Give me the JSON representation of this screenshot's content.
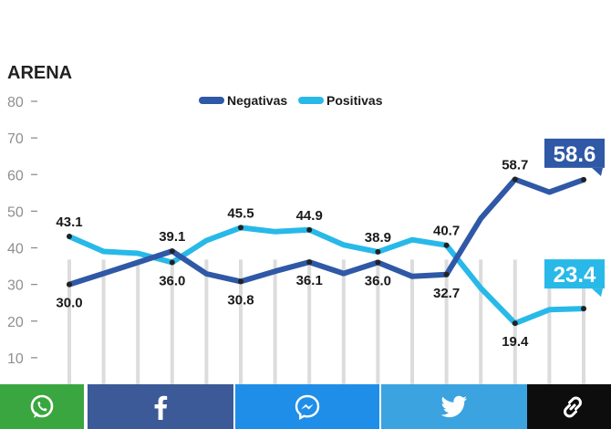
{
  "chart_data": {
    "type": "line",
    "title": "ARENA",
    "x": [
      1,
      2,
      3,
      4,
      5,
      6,
      7,
      8,
      9,
      10,
      11,
      12,
      13,
      14,
      15,
      16
    ],
    "xlabels": [
      "",
      "",
      "",
      "",
      "",
      "",
      "",
      "",
      "",
      "",
      "",
      "",
      "",
      "",
      "",
      ""
    ],
    "ylim": [
      0,
      80
    ],
    "yticks": [
      "80",
      "70",
      "60",
      "50",
      "40",
      "30",
      "20",
      "10"
    ],
    "yticks_values": [
      80,
      70,
      60,
      50,
      40,
      30,
      20,
      10
    ],
    "grid": "vertical",
    "legend": "top-center",
    "series": [
      {
        "name": "Negativas",
        "color": "#2f58a6",
        "values": [
          30.0,
          33.0,
          36.0,
          39.1,
          32.9,
          30.8,
          33.6,
          36.1,
          33.0,
          36.0,
          32.2,
          32.7,
          48.0,
          58.7,
          55.2,
          58.6
        ],
        "labels": [
          {
            "index": 0,
            "text": "30.0",
            "pos": "below"
          },
          {
            "index": 3,
            "text": "39.1",
            "pos": "above"
          },
          {
            "index": 5,
            "text": "30.8",
            "pos": "below"
          },
          {
            "index": 7,
            "text": "36.1",
            "pos": "below"
          },
          {
            "index": 9,
            "text": "36.0",
            "pos": "below"
          },
          {
            "index": 11,
            "text": "32.7",
            "pos": "below"
          },
          {
            "index": 13,
            "text": "58.7",
            "pos": "above"
          }
        ],
        "final_label": "58.6"
      },
      {
        "name": "Positivas",
        "color": "#28b9e8",
        "values": [
          43.1,
          39.0,
          38.5,
          36.0,
          42.0,
          45.5,
          44.4,
          44.9,
          40.8,
          38.9,
          42.2,
          40.7,
          29.0,
          19.4,
          23.1,
          23.4
        ],
        "labels": [
          {
            "index": 0,
            "text": "43.1",
            "pos": "above"
          },
          {
            "index": 3,
            "text": "36.0",
            "pos": "below"
          },
          {
            "index": 5,
            "text": "45.5",
            "pos": "above"
          },
          {
            "index": 7,
            "text": "44.9",
            "pos": "above"
          },
          {
            "index": 9,
            "text": "38.9",
            "pos": "above"
          },
          {
            "index": 11,
            "text": "40.7",
            "pos": "above"
          },
          {
            "index": 13,
            "text": "19.4",
            "pos": "below"
          }
        ],
        "final_label": "23.4"
      }
    ]
  },
  "share": {
    "buttons": [
      {
        "name": "whatsapp",
        "label": "WhatsApp",
        "icon": "whatsapp-icon",
        "color": "#3aa640"
      },
      {
        "name": "facebook",
        "label": "Facebook",
        "icon": "facebook-icon",
        "color": "#3c5a98"
      },
      {
        "name": "messenger",
        "label": "Messenger",
        "icon": "messenger-icon",
        "color": "#1f8ee8"
      },
      {
        "name": "twitter",
        "label": "Twitter",
        "icon": "twitter-icon",
        "color": "#3ba3e0"
      },
      {
        "name": "link",
        "label": "Copiar enlace",
        "icon": "link-icon",
        "color": "#0d0d0d"
      }
    ]
  }
}
